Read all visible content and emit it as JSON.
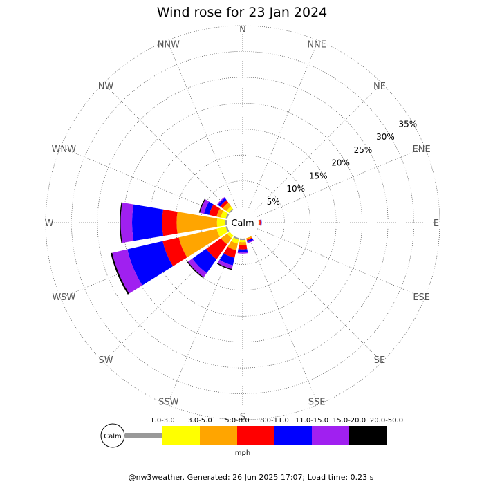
{
  "chart_data": {
    "type": "windrose",
    "title": "Wind rose for 23 Jan 2024",
    "center_label": "Calm",
    "directions": [
      "N",
      "NNE",
      "NE",
      "ENE",
      "E",
      "ESE",
      "SE",
      "SSE",
      "S",
      "SSW",
      "SW",
      "WSW",
      "W",
      "WNW",
      "NW",
      "NNW"
    ],
    "radial_ticks": [
      "5%",
      "10%",
      "15%",
      "20%",
      "25%",
      "30%",
      "35%"
    ],
    "radial_max_percent": 35,
    "speed_bins": [
      "1.0-3.0",
      "3.0-5.0",
      "5.0-8.0",
      "8.0-11.0",
      "11.0-15.0",
      "15.0-20.0",
      "20.0-50.0"
    ],
    "speed_unit": "mph",
    "colors": [
      "#999999",
      "#ffff00",
      "#ffa500",
      "#ff0000",
      "#0000ff",
      "#a020f0",
      "#000000"
    ],
    "series": [
      {
        "name": "1.0-3.0",
        "values": [
          0,
          0,
          0,
          0,
          0,
          0,
          0,
          0,
          0.3,
          0.3,
          0,
          0.3,
          0.3,
          0.3,
          0.2,
          0
        ]
      },
      {
        "name": "3.0-5.0",
        "values": [
          0,
          0,
          0,
          0,
          0,
          0,
          0,
          0,
          0.4,
          0.8,
          0.6,
          1.8,
          1.6,
          1.0,
          0.6,
          0
        ]
      },
      {
        "name": "5.0-8.0",
        "values": [
          0,
          0,
          0,
          0,
          0.2,
          0,
          0,
          0.3,
          0.6,
          1.3,
          1.5,
          7.5,
          7.8,
          0.8,
          0.9,
          0
        ]
      },
      {
        "name": "8.0-11.0",
        "values": [
          0,
          0,
          0,
          0,
          0.2,
          0,
          0,
          0.2,
          0.8,
          1.5,
          3.5,
          3.2,
          2.8,
          1.5,
          0.6,
          0
        ]
      },
      {
        "name": "11.0-15.0",
        "values": [
          0,
          0,
          0,
          0,
          0.2,
          0,
          0,
          0.3,
          0.6,
          1.5,
          3.3,
          7.0,
          5.8,
          1.0,
          0.5,
          0
        ]
      },
      {
        "name": "15.0-20.0",
        "values": [
          0,
          0,
          0,
          0,
          0,
          0,
          0,
          0.2,
          0.2,
          0.7,
          1.0,
          3.0,
          2.2,
          0.8,
          0.2,
          0
        ]
      },
      {
        "name": "20.0-50.0",
        "values": [
          0,
          0,
          0,
          0,
          0,
          0,
          0,
          0,
          0,
          0.2,
          0.2,
          0.3,
          0.2,
          0.2,
          0,
          0
        ]
      }
    ]
  },
  "footer": "@nw3weather. Generated: 26 Jun 2025 17:07; Load time: 0.23 s"
}
